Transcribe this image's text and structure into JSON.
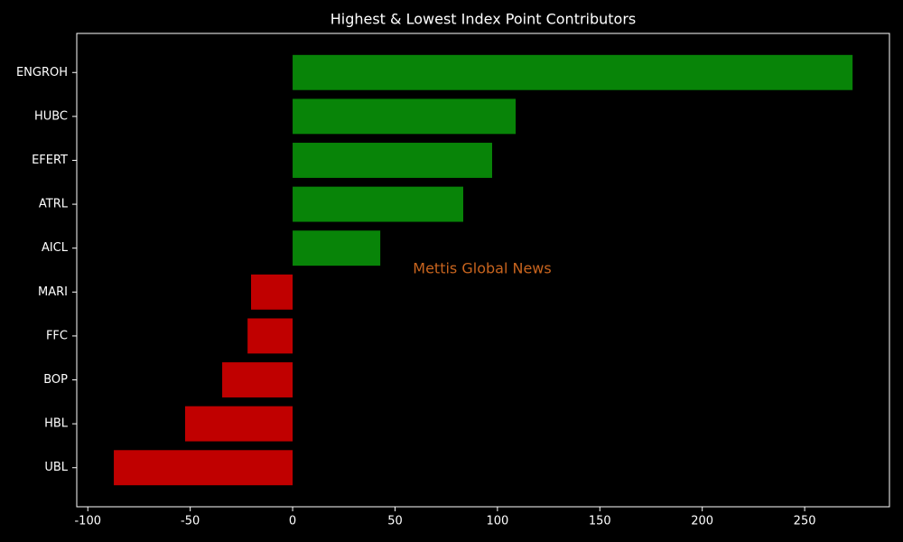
{
  "chart_data": {
    "type": "barh",
    "title": "Highest & Lowest Index Point Contributors",
    "annotation": "Mettis Global News",
    "categories": [
      "ENGROH",
      "HUBC",
      "EFERT",
      "ATRL",
      "AICL",
      "MARI",
      "FFC",
      "BOP",
      "HBL",
      "UBL"
    ],
    "values": [
      273.4,
      108.9,
      97.4,
      83.3,
      42.8,
      -20.3,
      -22.0,
      -34.4,
      -52.5,
      -87.3
    ],
    "colors": [
      "#088408",
      "#088408",
      "#088408",
      "#088408",
      "#088408",
      "#c00000",
      "#c00000",
      "#c00000",
      "#c00000",
      "#c00000"
    ],
    "xlim": [
      -105.4,
      291.4
    ],
    "xticks": [
      -100,
      -50,
      0,
      50,
      100,
      150,
      200,
      250
    ]
  }
}
